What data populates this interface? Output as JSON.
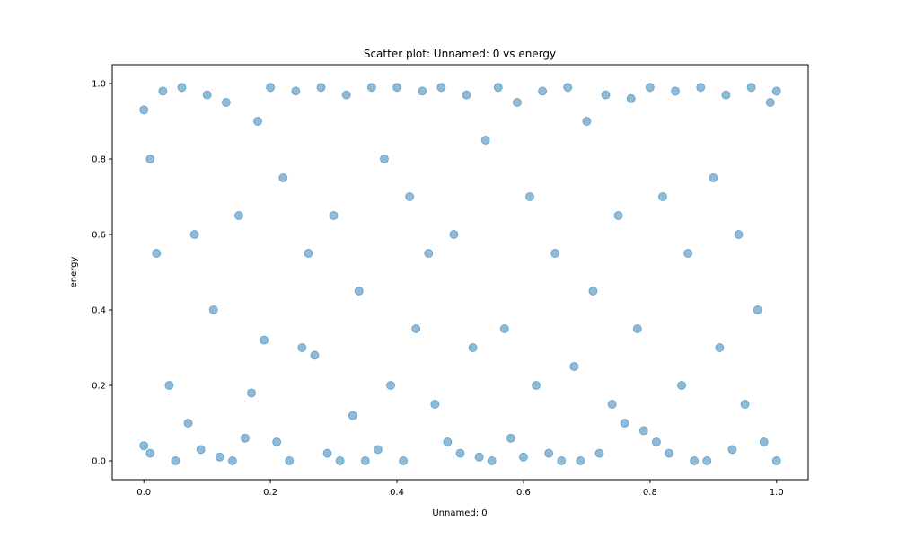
{
  "chart_data": {
    "type": "scatter",
    "title": "Scatter plot: Unnamed: 0 vs energy",
    "xlabel": "Unnamed: 0",
    "ylabel": "energy",
    "xlim": [
      -0.05,
      1.05
    ],
    "ylim": [
      -0.05,
      1.05
    ],
    "xticks": [
      0.0,
      0.2,
      0.4,
      0.6,
      0.8,
      1.0
    ],
    "xtick_labels": [
      "0.0",
      "0.2",
      "0.4",
      "0.6",
      "0.8",
      "1.0"
    ],
    "yticks": [
      0.0,
      0.2,
      0.4,
      0.6,
      0.8,
      1.0
    ],
    "ytick_labels": [
      "0.0",
      "0.2",
      "0.4",
      "0.6",
      "0.8",
      "1.0"
    ],
    "grid": false,
    "legend": "none",
    "marker_color": "#1f77b4",
    "marker_alpha": 0.5,
    "points": [
      {
        "x": 0.0,
        "y": 0.93
      },
      {
        "x": 0.0,
        "y": 0.04
      },
      {
        "x": 0.01,
        "y": 0.8
      },
      {
        "x": 0.01,
        "y": 0.02
      },
      {
        "x": 0.02,
        "y": 0.55
      },
      {
        "x": 0.03,
        "y": 0.98
      },
      {
        "x": 0.04,
        "y": 0.2
      },
      {
        "x": 0.05,
        "y": 0.0
      },
      {
        "x": 0.06,
        "y": 0.99
      },
      {
        "x": 0.07,
        "y": 0.1
      },
      {
        "x": 0.08,
        "y": 0.6
      },
      {
        "x": 0.09,
        "y": 0.03
      },
      {
        "x": 0.1,
        "y": 0.97
      },
      {
        "x": 0.11,
        "y": 0.4
      },
      {
        "x": 0.12,
        "y": 0.01
      },
      {
        "x": 0.13,
        "y": 0.95
      },
      {
        "x": 0.14,
        "y": 0.0
      },
      {
        "x": 0.15,
        "y": 0.65
      },
      {
        "x": 0.16,
        "y": 0.06
      },
      {
        "x": 0.17,
        "y": 0.18
      },
      {
        "x": 0.18,
        "y": 0.9
      },
      {
        "x": 0.19,
        "y": 0.32
      },
      {
        "x": 0.2,
        "y": 0.99
      },
      {
        "x": 0.21,
        "y": 0.05
      },
      {
        "x": 0.22,
        "y": 0.75
      },
      {
        "x": 0.23,
        "y": 0.0
      },
      {
        "x": 0.24,
        "y": 0.98
      },
      {
        "x": 0.25,
        "y": 0.3
      },
      {
        "x": 0.26,
        "y": 0.55
      },
      {
        "x": 0.27,
        "y": 0.28
      },
      {
        "x": 0.28,
        "y": 0.99
      },
      {
        "x": 0.29,
        "y": 0.02
      },
      {
        "x": 0.3,
        "y": 0.65
      },
      {
        "x": 0.31,
        "y": 0.0
      },
      {
        "x": 0.32,
        "y": 0.97
      },
      {
        "x": 0.33,
        "y": 0.12
      },
      {
        "x": 0.34,
        "y": 0.45
      },
      {
        "x": 0.35,
        "y": 0.0
      },
      {
        "x": 0.36,
        "y": 0.99
      },
      {
        "x": 0.37,
        "y": 0.03
      },
      {
        "x": 0.38,
        "y": 0.8
      },
      {
        "x": 0.39,
        "y": 0.2
      },
      {
        "x": 0.4,
        "y": 0.99
      },
      {
        "x": 0.41,
        "y": 0.0
      },
      {
        "x": 0.42,
        "y": 0.7
      },
      {
        "x": 0.43,
        "y": 0.35
      },
      {
        "x": 0.44,
        "y": 0.98
      },
      {
        "x": 0.45,
        "y": 0.55
      },
      {
        "x": 0.46,
        "y": 0.15
      },
      {
        "x": 0.47,
        "y": 0.99
      },
      {
        "x": 0.48,
        "y": 0.05
      },
      {
        "x": 0.49,
        "y": 0.6
      },
      {
        "x": 0.5,
        "y": 0.02
      },
      {
        "x": 0.51,
        "y": 0.97
      },
      {
        "x": 0.52,
        "y": 0.3
      },
      {
        "x": 0.53,
        "y": 0.01
      },
      {
        "x": 0.54,
        "y": 0.85
      },
      {
        "x": 0.55,
        "y": 0.0
      },
      {
        "x": 0.56,
        "y": 0.99
      },
      {
        "x": 0.57,
        "y": 0.35
      },
      {
        "x": 0.58,
        "y": 0.06
      },
      {
        "x": 0.59,
        "y": 0.95
      },
      {
        "x": 0.6,
        "y": 0.01
      },
      {
        "x": 0.61,
        "y": 0.7
      },
      {
        "x": 0.62,
        "y": 0.2
      },
      {
        "x": 0.63,
        "y": 0.98
      },
      {
        "x": 0.64,
        "y": 0.02
      },
      {
        "x": 0.65,
        "y": 0.55
      },
      {
        "x": 0.66,
        "y": 0.0
      },
      {
        "x": 0.67,
        "y": 0.99
      },
      {
        "x": 0.68,
        "y": 0.25
      },
      {
        "x": 0.69,
        "y": 0.0
      },
      {
        "x": 0.7,
        "y": 0.9
      },
      {
        "x": 0.71,
        "y": 0.45
      },
      {
        "x": 0.72,
        "y": 0.02
      },
      {
        "x": 0.73,
        "y": 0.97
      },
      {
        "x": 0.74,
        "y": 0.15
      },
      {
        "x": 0.75,
        "y": 0.65
      },
      {
        "x": 0.76,
        "y": 0.1
      },
      {
        "x": 0.77,
        "y": 0.96
      },
      {
        "x": 0.78,
        "y": 0.35
      },
      {
        "x": 0.79,
        "y": 0.08
      },
      {
        "x": 0.8,
        "y": 0.99
      },
      {
        "x": 0.81,
        "y": 0.05
      },
      {
        "x": 0.82,
        "y": 0.7
      },
      {
        "x": 0.83,
        "y": 0.02
      },
      {
        "x": 0.84,
        "y": 0.98
      },
      {
        "x": 0.85,
        "y": 0.2
      },
      {
        "x": 0.86,
        "y": 0.55
      },
      {
        "x": 0.87,
        "y": 0.0
      },
      {
        "x": 0.88,
        "y": 0.99
      },
      {
        "x": 0.89,
        "y": 0.0
      },
      {
        "x": 0.9,
        "y": 0.75
      },
      {
        "x": 0.91,
        "y": 0.3
      },
      {
        "x": 0.92,
        "y": 0.97
      },
      {
        "x": 0.93,
        "y": 0.03
      },
      {
        "x": 0.94,
        "y": 0.6
      },
      {
        "x": 0.95,
        "y": 0.15
      },
      {
        "x": 0.96,
        "y": 0.99
      },
      {
        "x": 0.97,
        "y": 0.4
      },
      {
        "x": 0.98,
        "y": 0.05
      },
      {
        "x": 0.99,
        "y": 0.95
      },
      {
        "x": 1.0,
        "y": 0.0
      },
      {
        "x": 1.0,
        "y": 0.98
      }
    ]
  }
}
